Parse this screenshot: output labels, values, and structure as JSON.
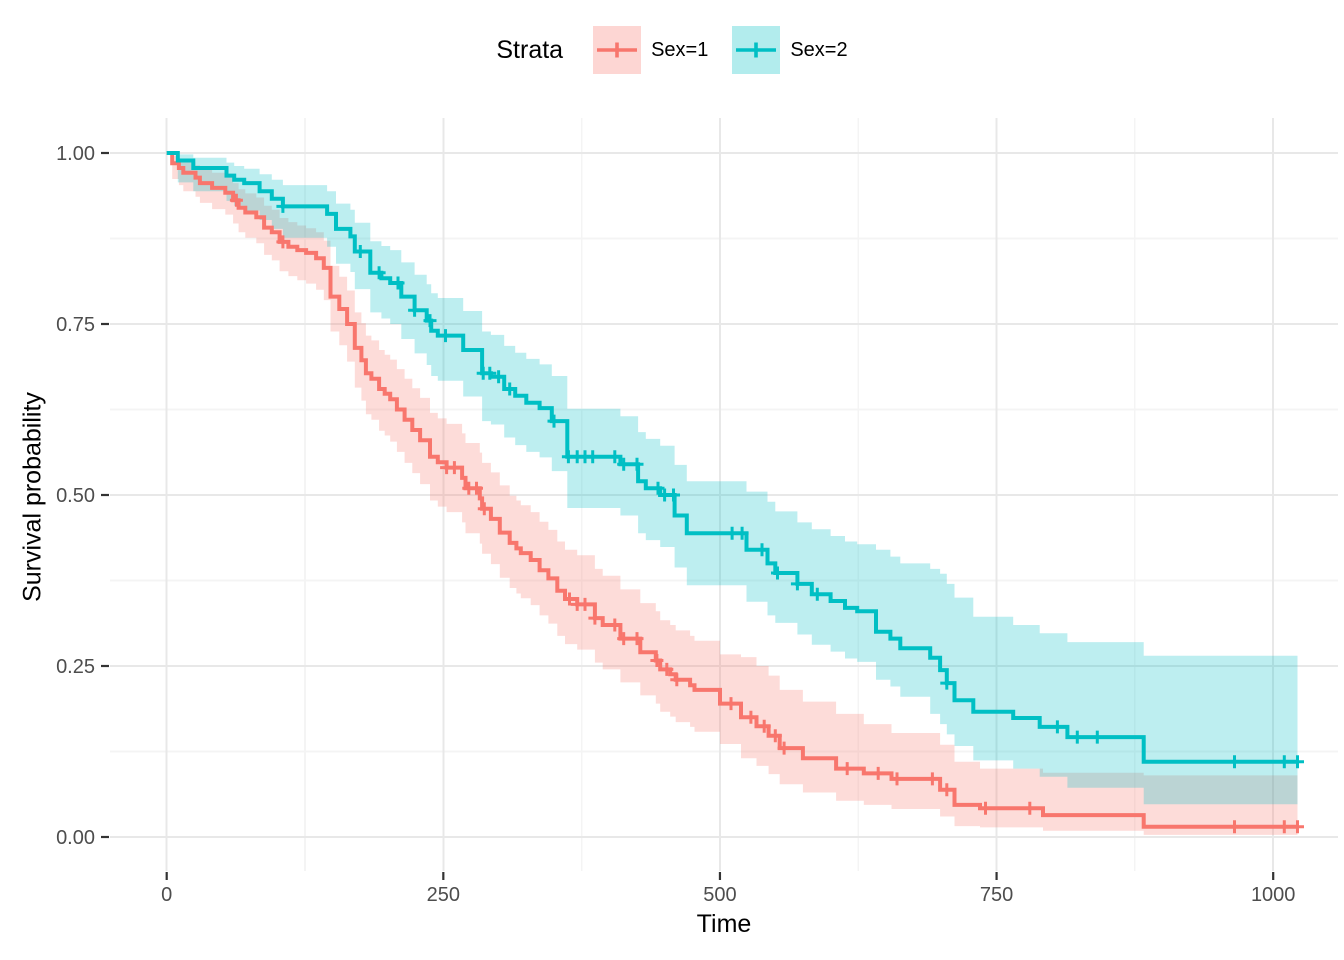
{
  "legend": {
    "title": "Strata",
    "items": [
      {
        "label": "Sex=1",
        "color": "#F8766D"
      },
      {
        "label": "Sex=2",
        "color": "#00BFC4"
      }
    ]
  },
  "axes": {
    "x": {
      "title": "Time",
      "ticks": [
        0,
        250,
        500,
        750,
        1000
      ],
      "minor": [
        125,
        375,
        625,
        875
      ],
      "lim": [
        0,
        1022
      ]
    },
    "y": {
      "title": "Survival probability",
      "ticks": [
        0,
        0.25,
        0.5,
        0.75,
        1
      ],
      "minor": [
        0.125,
        0.375,
        0.625,
        0.875
      ],
      "lim": [
        0,
        1
      ]
    }
  },
  "style": {
    "grid_major": "#e8e8e8",
    "grid_minor": "#f4f4f4",
    "tick_color": "#333333",
    "tick_label_color": "#4d4d4d",
    "band_opacity": 0.26
  },
  "chart_data": {
    "type": "line",
    "subtype": "kaplan-meier-step",
    "title": "",
    "xlabel": "Time",
    "ylabel": "Survival probability",
    "xlim": [
      0,
      1022
    ],
    "ylim": [
      0,
      1
    ],
    "grid": true,
    "legend_position": "top",
    "series": [
      {
        "name": "Sex=1",
        "color": "#F8766D",
        "points": [
          [
            0,
            1.0,
            1.0,
            1.0
          ],
          [
            5,
            0.985,
            0.962,
            0.996
          ],
          [
            11,
            0.978,
            0.953,
            0.992
          ],
          [
            15,
            0.971,
            0.944,
            0.987
          ],
          [
            26,
            0.964,
            0.936,
            0.982
          ],
          [
            30,
            0.956,
            0.927,
            0.977
          ],
          [
            41,
            0.949,
            0.918,
            0.971
          ],
          [
            53,
            0.942,
            0.91,
            0.965
          ],
          [
            60,
            0.931,
            0.897,
            0.956
          ],
          [
            65,
            0.92,
            0.884,
            0.947
          ],
          [
            71,
            0.913,
            0.876,
            0.941
          ],
          [
            81,
            0.906,
            0.868,
            0.935
          ],
          [
            88,
            0.891,
            0.851,
            0.923
          ],
          [
            95,
            0.884,
            0.843,
            0.917
          ],
          [
            102,
            0.87,
            0.827,
            0.905
          ],
          [
            110,
            0.863,
            0.82,
            0.899
          ],
          [
            118,
            0.858,
            0.814,
            0.894
          ],
          [
            126,
            0.854,
            0.809,
            0.89
          ],
          [
            135,
            0.846,
            0.8,
            0.884
          ],
          [
            142,
            0.832,
            0.785,
            0.872
          ],
          [
            148,
            0.79,
            0.739,
            0.835
          ],
          [
            156,
            0.772,
            0.719,
            0.819
          ],
          [
            163,
            0.75,
            0.695,
            0.799
          ],
          [
            170,
            0.715,
            0.657,
            0.767
          ],
          [
            176,
            0.697,
            0.638,
            0.751
          ],
          [
            180,
            0.678,
            0.618,
            0.733
          ],
          [
            185,
            0.67,
            0.61,
            0.726
          ],
          [
            192,
            0.655,
            0.594,
            0.712
          ],
          [
            197,
            0.648,
            0.587,
            0.705
          ],
          [
            202,
            0.64,
            0.578,
            0.698
          ],
          [
            208,
            0.625,
            0.563,
            0.684
          ],
          [
            215,
            0.61,
            0.547,
            0.67
          ],
          [
            222,
            0.595,
            0.532,
            0.656
          ],
          [
            229,
            0.58,
            0.516,
            0.642
          ],
          [
            238,
            0.556,
            0.492,
            0.62
          ],
          [
            245,
            0.548,
            0.483,
            0.612
          ],
          [
            253,
            0.54,
            0.475,
            0.604
          ],
          [
            267,
            0.525,
            0.46,
            0.59
          ],
          [
            270,
            0.51,
            0.444,
            0.576
          ],
          [
            283,
            0.495,
            0.429,
            0.562
          ],
          [
            285,
            0.48,
            0.414,
            0.547
          ],
          [
            293,
            0.465,
            0.399,
            0.533
          ],
          [
            301,
            0.445,
            0.379,
            0.514
          ],
          [
            310,
            0.43,
            0.364,
            0.499
          ],
          [
            316,
            0.422,
            0.356,
            0.492
          ],
          [
            320,
            0.415,
            0.349,
            0.485
          ],
          [
            329,
            0.405,
            0.339,
            0.475
          ],
          [
            337,
            0.39,
            0.324,
            0.461
          ],
          [
            345,
            0.378,
            0.312,
            0.449
          ],
          [
            353,
            0.36,
            0.294,
            0.432
          ],
          [
            360,
            0.348,
            0.282,
            0.42
          ],
          [
            371,
            0.34,
            0.274,
            0.412
          ],
          [
            387,
            0.32,
            0.255,
            0.392
          ],
          [
            394,
            0.31,
            0.245,
            0.382
          ],
          [
            410,
            0.29,
            0.226,
            0.362
          ],
          [
            428,
            0.27,
            0.207,
            0.342
          ],
          [
            442,
            0.258,
            0.195,
            0.33
          ],
          [
            446,
            0.245,
            0.183,
            0.317
          ],
          [
            455,
            0.238,
            0.176,
            0.31
          ],
          [
            460,
            0.23,
            0.168,
            0.302
          ],
          [
            473,
            0.222,
            0.161,
            0.294
          ],
          [
            477,
            0.215,
            0.154,
            0.287
          ],
          [
            500,
            0.195,
            0.136,
            0.267
          ],
          [
            519,
            0.175,
            0.115,
            0.263
          ],
          [
            533,
            0.162,
            0.104,
            0.25
          ],
          [
            544,
            0.148,
            0.092,
            0.236
          ],
          [
            554,
            0.13,
            0.077,
            0.215
          ],
          [
            575,
            0.115,
            0.065,
            0.198
          ],
          [
            605,
            0.1,
            0.053,
            0.18
          ],
          [
            630,
            0.093,
            0.047,
            0.165
          ],
          [
            655,
            0.085,
            0.041,
            0.152
          ],
          [
            699,
            0.069,
            0.03,
            0.135
          ],
          [
            712,
            0.047,
            0.016,
            0.11
          ],
          [
            735,
            0.042,
            0.014,
            0.1
          ],
          [
            792,
            0.032,
            0.009,
            0.094
          ],
          [
            883,
            0.015,
            0.003,
            0.09
          ],
          [
            1022,
            0.015,
            0.003,
            0.09
          ]
        ],
        "censor_times": [
          63,
          105,
          253,
          260,
          273,
          280,
          287,
          364,
          371,
          378,
          387,
          405,
          413,
          425,
          443,
          452,
          461,
          510,
          528,
          540,
          550,
          558,
          615,
          643,
          660,
          692,
          705,
          740,
          780,
          965,
          1010,
          1022
        ]
      },
      {
        "name": "Sex=2",
        "color": "#00BFC4",
        "points": [
          [
            0,
            1.0,
            1.0,
            1.0
          ],
          [
            10,
            0.989,
            0.957,
            0.998
          ],
          [
            24,
            0.978,
            0.944,
            0.993
          ],
          [
            54,
            0.967,
            0.93,
            0.986
          ],
          [
            61,
            0.961,
            0.923,
            0.981
          ],
          [
            70,
            0.956,
            0.916,
            0.977
          ],
          [
            84,
            0.944,
            0.902,
            0.969
          ],
          [
            95,
            0.933,
            0.889,
            0.961
          ],
          [
            105,
            0.922,
            0.876,
            0.953
          ],
          [
            145,
            0.911,
            0.863,
            0.944
          ],
          [
            153,
            0.889,
            0.838,
            0.926
          ],
          [
            166,
            0.878,
            0.826,
            0.917
          ],
          [
            170,
            0.856,
            0.801,
            0.898
          ],
          [
            184,
            0.825,
            0.767,
            0.871
          ],
          [
            194,
            0.817,
            0.758,
            0.864
          ],
          [
            202,
            0.81,
            0.75,
            0.858
          ],
          [
            212,
            0.79,
            0.728,
            0.84
          ],
          [
            224,
            0.77,
            0.707,
            0.822
          ],
          [
            235,
            0.755,
            0.69,
            0.808
          ],
          [
            239,
            0.74,
            0.674,
            0.795
          ],
          [
            245,
            0.733,
            0.667,
            0.788
          ],
          [
            268,
            0.712,
            0.644,
            0.769
          ],
          [
            285,
            0.678,
            0.608,
            0.739
          ],
          [
            293,
            0.673,
            0.603,
            0.734
          ],
          [
            305,
            0.655,
            0.584,
            0.718
          ],
          [
            315,
            0.645,
            0.573,
            0.708
          ],
          [
            325,
            0.635,
            0.563,
            0.699
          ],
          [
            337,
            0.627,
            0.555,
            0.691
          ],
          [
            348,
            0.608,
            0.535,
            0.674
          ],
          [
            362,
            0.556,
            0.481,
            0.626
          ],
          [
            410,
            0.545,
            0.47,
            0.615
          ],
          [
            426,
            0.52,
            0.444,
            0.592
          ],
          [
            433,
            0.51,
            0.434,
            0.582
          ],
          [
            446,
            0.5,
            0.424,
            0.572
          ],
          [
            459,
            0.47,
            0.394,
            0.544
          ],
          [
            470,
            0.444,
            0.368,
            0.52
          ],
          [
            524,
            0.42,
            0.344,
            0.505
          ],
          [
            543,
            0.4,
            0.324,
            0.49
          ],
          [
            550,
            0.386,
            0.313,
            0.476
          ],
          [
            570,
            0.37,
            0.296,
            0.46
          ],
          [
            583,
            0.355,
            0.281,
            0.45
          ],
          [
            600,
            0.345,
            0.271,
            0.44
          ],
          [
            613,
            0.335,
            0.261,
            0.432
          ],
          [
            624,
            0.33,
            0.256,
            0.428
          ],
          [
            641,
            0.3,
            0.23,
            0.42
          ],
          [
            654,
            0.29,
            0.22,
            0.41
          ],
          [
            663,
            0.276,
            0.205,
            0.4
          ],
          [
            690,
            0.262,
            0.18,
            0.392
          ],
          [
            699,
            0.244,
            0.165,
            0.385
          ],
          [
            705,
            0.225,
            0.15,
            0.37
          ],
          [
            712,
            0.2,
            0.133,
            0.35
          ],
          [
            729,
            0.183,
            0.112,
            0.322
          ],
          [
            765,
            0.174,
            0.1,
            0.31
          ],
          [
            789,
            0.161,
            0.088,
            0.298
          ],
          [
            814,
            0.146,
            0.072,
            0.285
          ],
          [
            883,
            0.11,
            0.048,
            0.265
          ],
          [
            1022,
            0.11,
            0.048,
            0.265
          ]
        ],
        "censor_times": [
          105,
          175,
          192,
          209,
          224,
          238,
          252,
          286,
          292,
          300,
          310,
          350,
          363,
          371,
          378,
          385,
          405,
          413,
          425,
          444,
          450,
          458,
          511,
          520,
          538,
          552,
          570,
          588,
          705,
          805,
          823,
          841,
          965,
          1010,
          1022
        ]
      }
    ]
  }
}
